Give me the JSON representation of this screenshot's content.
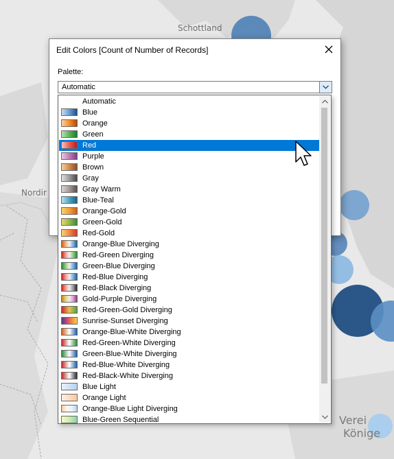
{
  "map": {
    "labels": [
      "Schottland",
      "Nordir",
      "Verei",
      "Könige"
    ]
  },
  "dialog": {
    "title": "Edit Colors [Count of Number of Records]",
    "palette_label": "Palette:",
    "selected_value": "Automatic"
  },
  "dropdown": {
    "selected_option": "Red",
    "options": [
      {
        "label": "Automatic",
        "swatch": "none"
      },
      {
        "label": "Blue",
        "swatch": "linear-gradient(90deg,#c6dbef,#6a9ed3,#1f4e8c)"
      },
      {
        "label": "Orange",
        "swatch": "linear-gradient(90deg,#fdd0a2,#f98a2b,#b34a06)"
      },
      {
        "label": "Green",
        "swatch": "linear-gradient(90deg,#b9dfb0,#5bb35a,#1e7a2e)"
      },
      {
        "label": "Red",
        "swatch": "linear-gradient(90deg,#f9c1bf,#ec5a55,#b51d22)"
      },
      {
        "label": "Purple",
        "swatch": "linear-gradient(90deg,#e7c8de,#c27cb3,#7b3f86)"
      },
      {
        "label": "Brown",
        "swatch": "linear-gradient(90deg,#f5cfa1,#d08b4a,#8a4f2b)"
      },
      {
        "label": "Gray",
        "swatch": "linear-gradient(90deg,#e0e0e0,#9b9b9b,#4a4a4a)"
      },
      {
        "label": "Gray Warm",
        "swatch": "linear-gradient(90deg,#ddd5cf,#a39a95,#5a5250)"
      },
      {
        "label": "Blue-Teal",
        "swatch": "linear-gradient(90deg,#b8e3ea,#4aa6c1,#1d5f8a)"
      },
      {
        "label": "Orange-Gold",
        "swatch": "linear-gradient(90deg,#fbd16b,#f2a13a,#c9601c)"
      },
      {
        "label": "Green-Gold",
        "swatch": "linear-gradient(90deg,#e8d56b,#97b64a,#3c8a42)"
      },
      {
        "label": "Red-Gold",
        "swatch": "linear-gradient(90deg,#f9d27a,#f08a44,#d33b2a)"
      },
      {
        "label": "Orange-Blue Diverging",
        "swatch": "linear-gradient(90deg,#d1611c,#f4b07a,#f0f0f0,#7fb1d9,#1f5fa8)"
      },
      {
        "label": "Red-Green Diverging",
        "swatch": "linear-gradient(90deg,#c42a2a,#f19b8f,#f0f0f0,#8fcc7f,#2f8a3a)"
      },
      {
        "label": "Green-Blue Diverging",
        "swatch": "linear-gradient(90deg,#2f8a3a,#8fcc7f,#f0f0f0,#7fb1d9,#1f5fa8)"
      },
      {
        "label": "Red-Blue Diverging",
        "swatch": "linear-gradient(90deg,#c42a2a,#f19b8f,#f0f0f0,#7fb1d9,#1f5fa8)"
      },
      {
        "label": "Red-Black Diverging",
        "swatch": "linear-gradient(90deg,#c42a2a,#f19b8f,#f0f0f0,#9a9a9a,#2a2a2a)"
      },
      {
        "label": "Gold-Purple Diverging",
        "swatch": "linear-gradient(90deg,#b58a1f,#e6cf7a,#f0f0f0,#d9a3cf,#8a3f86)"
      },
      {
        "label": "Red-Green-Gold Diverging",
        "swatch": "linear-gradient(90deg,#c42a2a,#f0c04a,#4aa34a)"
      },
      {
        "label": "Sunrise-Sunset Diverging",
        "swatch": "linear-gradient(90deg,#4a3f8a,#c6467a,#f58a3a,#f7d14a)"
      },
      {
        "label": "Orange-Blue-White Diverging",
        "swatch": "linear-gradient(90deg,#d1611c,#ffffff,#1f5fa8)"
      },
      {
        "label": "Red-Green-White Diverging",
        "swatch": "linear-gradient(90deg,#c42a2a,#ffffff,#2f8a3a)"
      },
      {
        "label": "Green-Blue-White Diverging",
        "swatch": "linear-gradient(90deg,#2f8a3a,#ffffff,#1f5fa8)"
      },
      {
        "label": "Red-Blue-White Diverging",
        "swatch": "linear-gradient(90deg,#c42a2a,#ffffff,#1f5fa8)"
      },
      {
        "label": "Red-Black-White Diverging",
        "swatch": "linear-gradient(90deg,#c42a2a,#ffffff,#2a2a2a)"
      },
      {
        "label": "Blue Light",
        "swatch": "linear-gradient(90deg,#eaf2fb,#cfe2f5,#b4d2ef)"
      },
      {
        "label": "Orange Light",
        "swatch": "linear-gradient(90deg,#fff0e2,#fddcc0,#fbc9a0)"
      },
      {
        "label": "Orange-Blue Light Diverging",
        "swatch": "linear-gradient(90deg,#fbc9a0,#fff4ea,#eaf2fb,#b4d2ef)"
      },
      {
        "label": "Blue-Green Sequential",
        "swatch": "linear-gradient(90deg,#f7fcc0,#cdebb0,#8fd3a6)"
      }
    ]
  },
  "colors": {
    "selection": "#0078d7",
    "bubble_dark": "#2b5788",
    "bubble_mid": "#5b8fc4",
    "bubble_light": "#9ec5e8"
  }
}
